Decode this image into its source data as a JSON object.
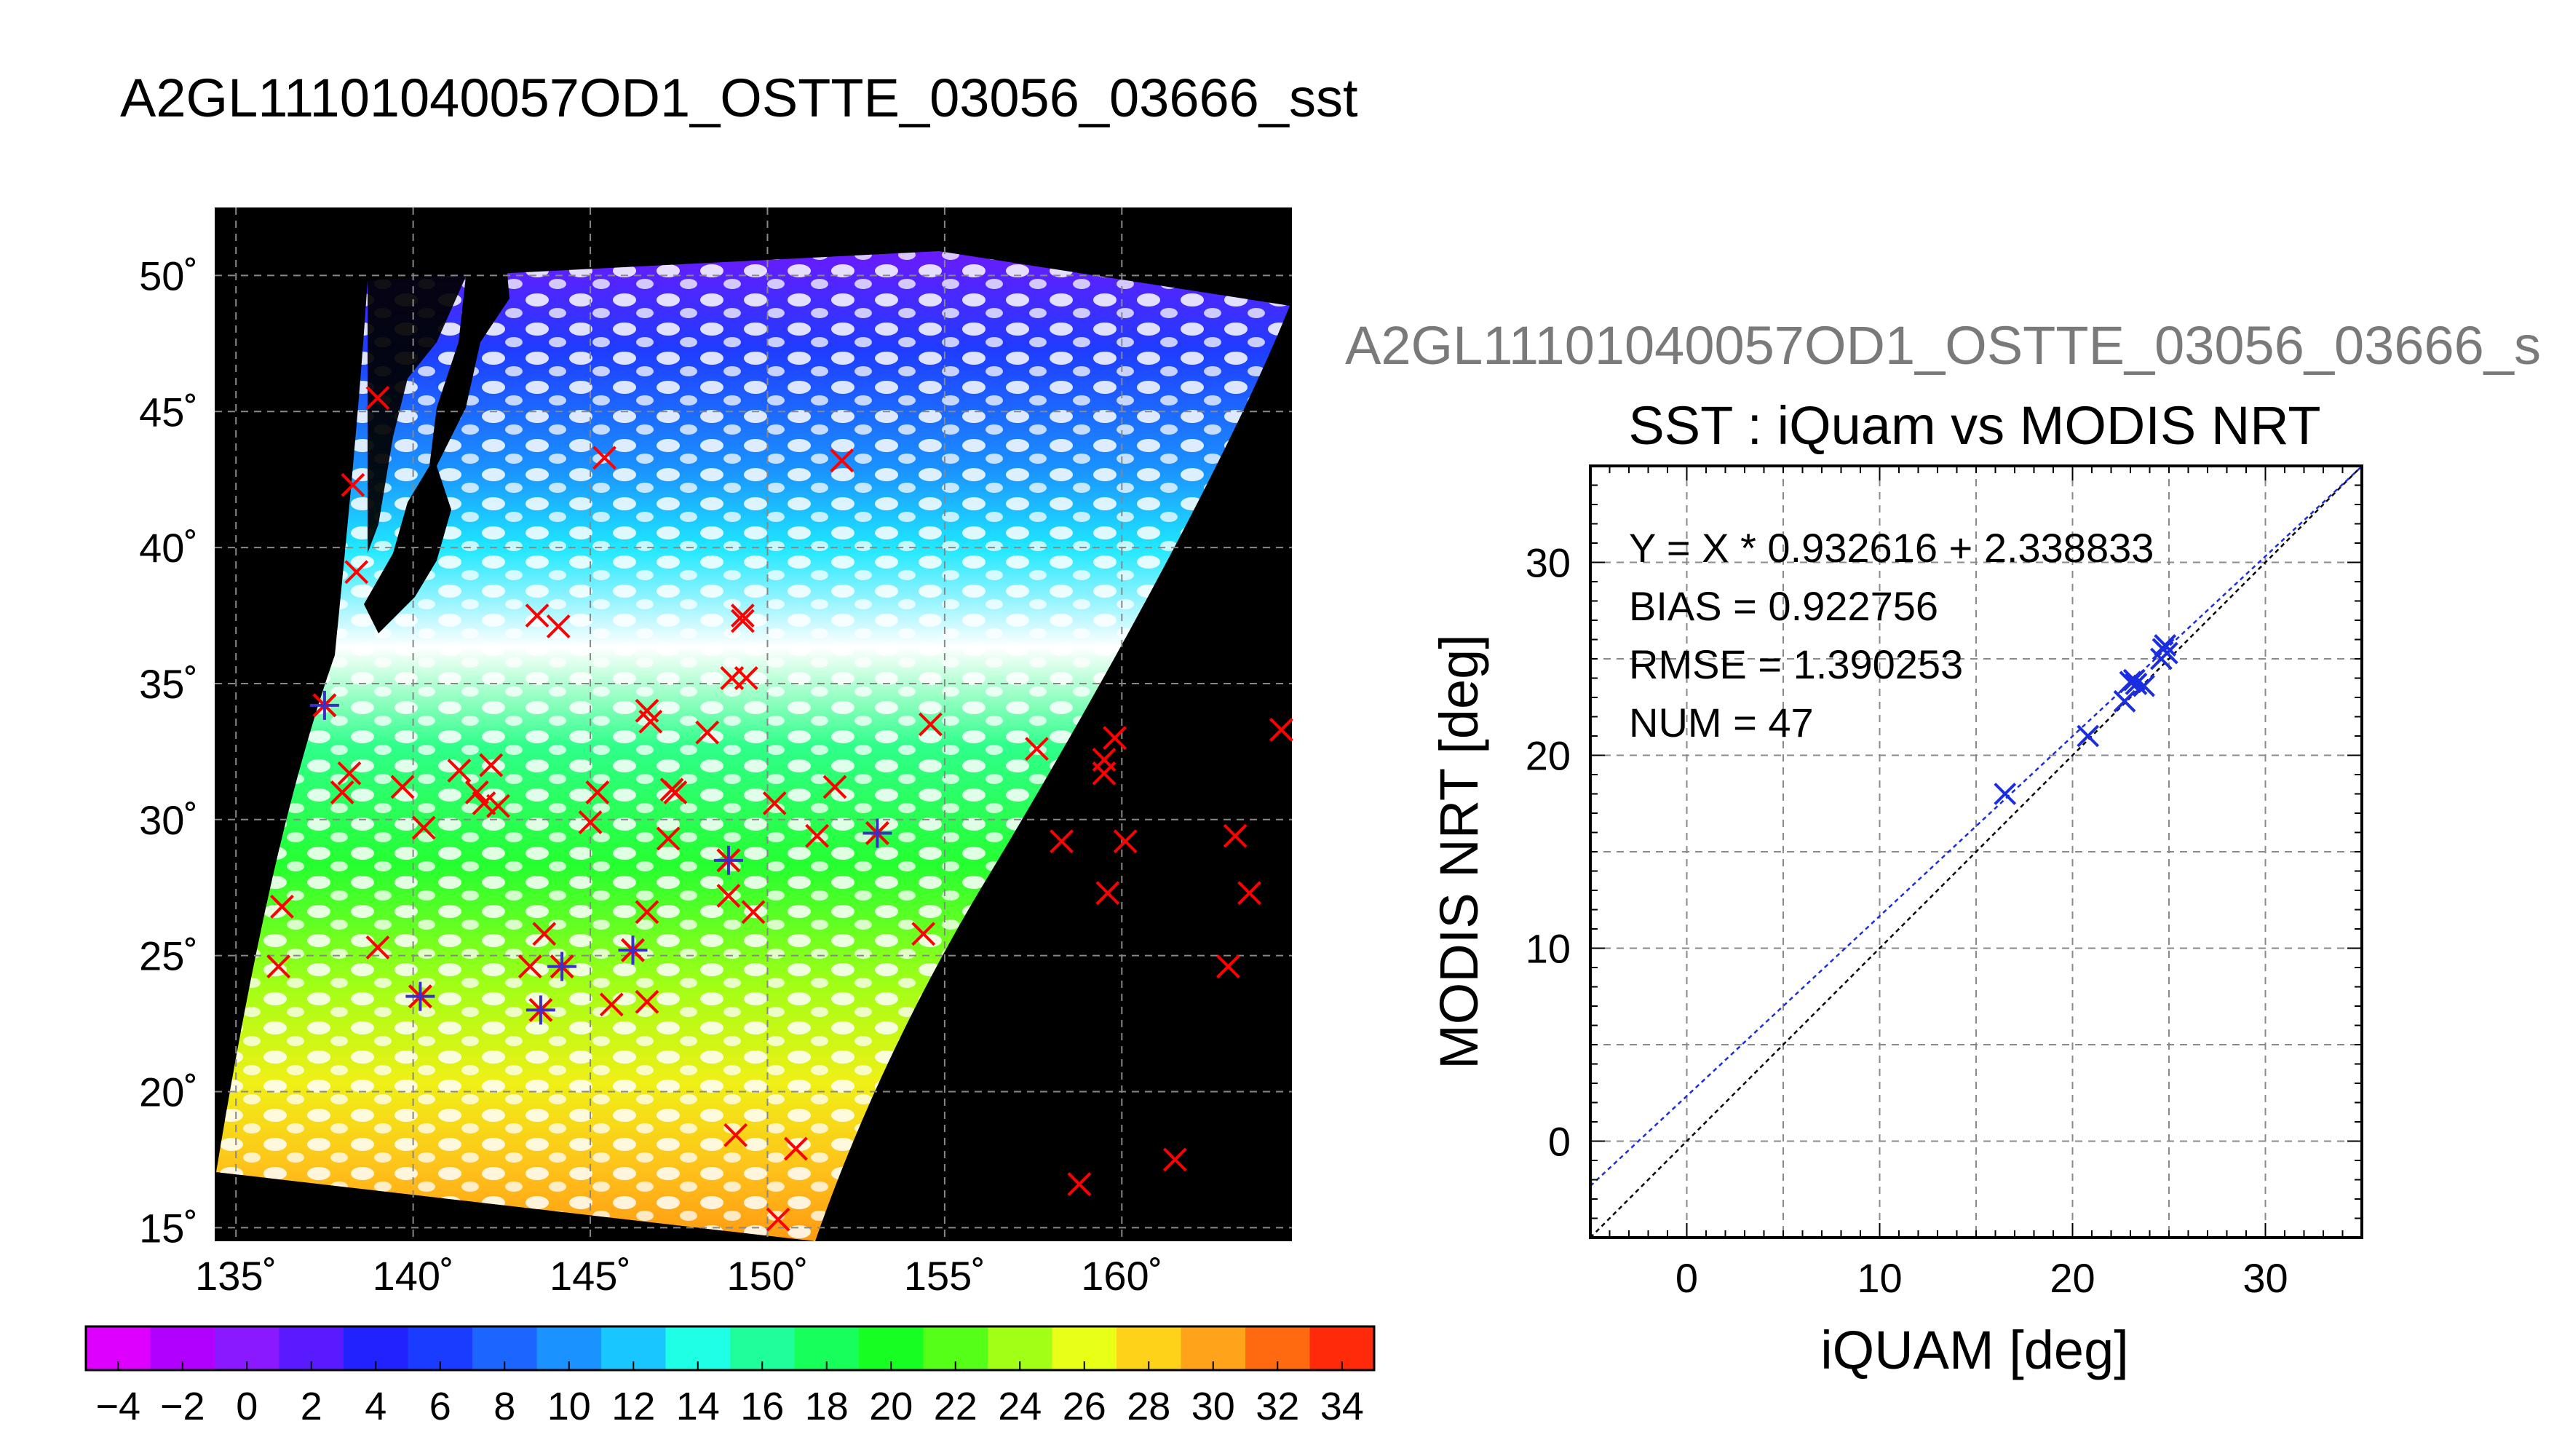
{
  "title": "A2GL11101040057OD1_OSTTE_03056_03666_sst",
  "colors": {
    "background": "#ffffff",
    "map_background": "#000000",
    "match_marker": "#ff0000",
    "highlight_marker": "#3b2fc8",
    "fit_line": "#1a2ee0",
    "one_to_one_line": "#000000",
    "grid": "#7a7a7a",
    "ghost_title": "#7a7a7a"
  },
  "map": {
    "lon_ticks": [
      "135˚",
      "140˚",
      "145˚",
      "150˚",
      "155˚",
      "160˚"
    ],
    "lat_ticks": [
      "50˚",
      "45˚",
      "40˚",
      "35˚",
      "30˚",
      "25˚",
      "20˚",
      "15˚"
    ],
    "lon_range": [
      134.4,
      164.8
    ],
    "lat_range": [
      14.5,
      52.5
    ],
    "matchups": [
      [
        139.0,
        45.5
      ],
      [
        138.3,
        42.3
      ],
      [
        138.4,
        39.1
      ],
      [
        137.5,
        34.2
      ],
      [
        136.3,
        26.8
      ],
      [
        136.2,
        24.6
      ],
      [
        138.2,
        31.7
      ],
      [
        138.0,
        31.0
      ],
      [
        139.0,
        25.3
      ],
      [
        139.7,
        31.2
      ],
      [
        140.3,
        29.7
      ],
      [
        140.2,
        23.5
      ],
      [
        141.3,
        31.8
      ],
      [
        141.8,
        31.0
      ],
      [
        142.0,
        30.6
      ],
      [
        142.2,
        32.0
      ],
      [
        142.4,
        30.5
      ],
      [
        143.5,
        37.5
      ],
      [
        144.1,
        37.1
      ],
      [
        143.3,
        24.6
      ],
      [
        143.6,
        23.0
      ],
      [
        143.7,
        25.8
      ],
      [
        144.2,
        24.6
      ],
      [
        145.0,
        29.9
      ],
      [
        145.2,
        31.0
      ],
      [
        145.4,
        43.3
      ],
      [
        145.6,
        23.2
      ],
      [
        146.2,
        25.2
      ],
      [
        146.6,
        26.6
      ],
      [
        146.6,
        23.3
      ],
      [
        146.7,
        33.6
      ],
      [
        146.6,
        34.0
      ],
      [
        147.3,
        31.1
      ],
      [
        147.2,
        29.3
      ],
      [
        147.4,
        31.0
      ],
      [
        148.3,
        33.2
      ],
      [
        149.0,
        35.2
      ],
      [
        149.4,
        35.2
      ],
      [
        149.3,
        37.3
      ],
      [
        149.3,
        37.5
      ],
      [
        148.9,
        28.5
      ],
      [
        148.9,
        27.2
      ],
      [
        149.6,
        26.6
      ],
      [
        149.1,
        18.4
      ],
      [
        150.2,
        30.6
      ],
      [
        150.3,
        15.3
      ],
      [
        150.8,
        17.9
      ],
      [
        151.4,
        29.4
      ],
      [
        151.9,
        31.2
      ],
      [
        152.1,
        43.2
      ],
      [
        153.1,
        29.5
      ],
      [
        154.6,
        33.5
      ],
      [
        154.4,
        25.8
      ],
      [
        157.6,
        32.6
      ],
      [
        158.3,
        29.2
      ],
      [
        158.8,
        16.6
      ],
      [
        159.5,
        31.7
      ],
      [
        159.6,
        27.3
      ],
      [
        159.8,
        33.0
      ],
      [
        160.1,
        29.2
      ],
      [
        161.5,
        17.5
      ],
      [
        163.0,
        24.6
      ],
      [
        163.2,
        29.4
      ],
      [
        163.6,
        27.3
      ],
      [
        164.5,
        33.3
      ],
      [
        159.5,
        32.2
      ]
    ],
    "highlighted": [
      [
        137.5,
        34.2
      ],
      [
        140.2,
        23.5
      ],
      [
        143.6,
        23.0
      ],
      [
        144.2,
        24.6
      ],
      [
        146.2,
        25.2
      ],
      [
        148.9,
        28.5
      ],
      [
        153.1,
        29.5
      ]
    ],
    "colorbar": {
      "min": -5,
      "max": 35,
      "tick_labels": [
        "−4",
        "−2",
        "0",
        "2",
        "4",
        "6",
        "8",
        "10",
        "12",
        "14",
        "16",
        "18",
        "20",
        "22",
        "24",
        "26",
        "28",
        "30",
        "32",
        "34"
      ],
      "tick_values": [
        -4,
        -2,
        0,
        2,
        4,
        6,
        8,
        10,
        12,
        14,
        16,
        18,
        20,
        22,
        24,
        26,
        28,
        30,
        32,
        34
      ],
      "colors": [
        "#dd00ff",
        "#b200ff",
        "#8a19ff",
        "#5a1aff",
        "#2222ff",
        "#1a3cff",
        "#1a66ff",
        "#1a92ff",
        "#19c6ff",
        "#1fffe6",
        "#1eff9c",
        "#17ff5a",
        "#17ff22",
        "#55ff17",
        "#a2ff16",
        "#e8ff16",
        "#ffd21a",
        "#ffa31a",
        "#ff6a10",
        "#ff2a0a"
      ]
    }
  },
  "chart_data": {
    "type": "scatter",
    "title": "SST : iQuam vs MODIS NRT",
    "xlabel": "iQUAM [deg]",
    "ylabel": "MODIS NRT [deg]",
    "xlim": [
      -5,
      35
    ],
    "ylim": [
      -5,
      35
    ],
    "xticks": [
      0,
      10,
      20,
      30
    ],
    "yticks": [
      0,
      10,
      20,
      30
    ],
    "grid": true,
    "annotations": [
      "Y = X * 0.932616 + 2.338833",
      "BIAS = 0.922756",
      "RMSE = 1.390253",
      "NUM = 47"
    ],
    "fit": {
      "slope": 0.932616,
      "intercept": 2.338833
    },
    "series": [
      {
        "x": [
          16.5,
          20.8,
          22.7,
          23.0,
          23.2,
          23.3,
          23.7,
          24.6,
          24.7,
          24.8,
          24.9
        ],
        "y": [
          18.0,
          21.0,
          22.8,
          23.8,
          23.9,
          23.7,
          23.6,
          25.0,
          25.5,
          25.7,
          25.3
        ]
      }
    ]
  },
  "ghost_title": "A2GL11101040057OD1_OSTTE_03056_03666_s"
}
